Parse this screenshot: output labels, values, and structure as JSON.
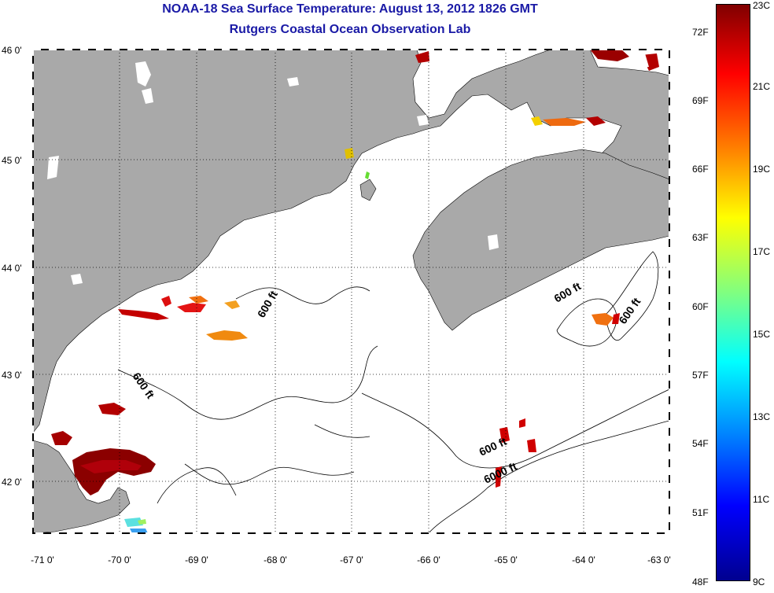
{
  "header": {
    "title": "NOAA-18 Sea Surface Temperature:  August 13, 2012 1826 GMT",
    "subtitle": "Rutgers Coastal Ocean Observation Lab"
  },
  "map": {
    "lon_ticks": [
      "-71 0'",
      "-70 0'",
      "-69 0'",
      "-68 0'",
      "-67 0'",
      "-66 0'",
      "-65 0'",
      "-64 0'",
      "-63 0'"
    ],
    "lat_ticks": [
      "46 0'",
      "45 0'",
      "44 0'",
      "43 0'",
      "42 0'"
    ],
    "contour_labels": [
      "600 ft",
      "600 ft",
      "600 ft",
      "600 ft",
      "6000 ft"
    ],
    "colors": {
      "land": "#a9a9a9",
      "water": "#ffffff"
    }
  },
  "colorbar": {
    "fahrenheit": [
      "72F",
      "69F",
      "66F",
      "63F",
      "60F",
      "57F",
      "54F",
      "51F",
      "48F"
    ],
    "celsius": [
      "23C",
      "21C",
      "19C",
      "17C",
      "15C",
      "13C",
      "11C",
      "9C"
    ],
    "colormap": "jet"
  }
}
